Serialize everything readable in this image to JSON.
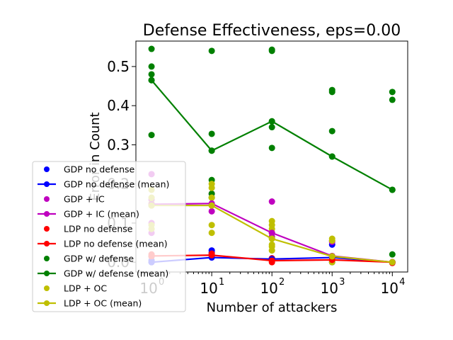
{
  "chart_data": {
    "type": "scatter",
    "title": "Defense Effectiveness, eps=0.00",
    "xlabel": "Number of attackers",
    "ylabel": "Error in Count",
    "xscale": "log",
    "xlim": [
      0.55,
      18000
    ],
    "ylim": [
      -0.025,
      0.565
    ],
    "xticks": [
      {
        "value": 1,
        "label": "10",
        "exp": "0"
      },
      {
        "value": 10,
        "label": "10",
        "exp": "1"
      },
      {
        "value": 100,
        "label": "10",
        "exp": "2"
      },
      {
        "value": 1000,
        "label": "10",
        "exp": "3"
      },
      {
        "value": 10000,
        "label": "10",
        "exp": "4"
      }
    ],
    "yticks": [
      0.0,
      0.1,
      0.2,
      0.3,
      0.4,
      0.5
    ],
    "ytick_labels": [
      "0.0",
      "0.1",
      "0.2",
      "0.3",
      "0.4",
      "0.5"
    ],
    "x": [
      1,
      10,
      100,
      1000,
      10000
    ],
    "series": [
      {
        "name": "GDP no defense",
        "color": "#0000ff",
        "points": [
          [
            1,
            0.0
          ],
          [
            1,
            0.005
          ],
          [
            10,
            0.018
          ],
          [
            10,
            0.025
          ],
          [
            10,
            0.03
          ],
          [
            100,
            0.005
          ],
          [
            100,
            0.01
          ],
          [
            1000,
            0.045
          ],
          [
            1000,
            0.0
          ],
          [
            10000,
            0.0
          ]
        ],
        "mean": [
          0.0,
          0.012,
          0.008,
          0.012,
          0.0
        ]
      },
      {
        "name": "GDP + IC",
        "color": "#bf00bf",
        "points": [
          [
            1,
            0.225
          ],
          [
            1,
            0.16
          ],
          [
            1,
            0.1
          ],
          [
            1,
            0.075
          ],
          [
            1,
            0.015
          ],
          [
            10,
            0.175
          ],
          [
            10,
            0.13
          ],
          [
            100,
            0.155
          ],
          [
            100,
            0.075
          ],
          [
            100,
            0.065
          ],
          [
            1000,
            0.055
          ],
          [
            1000,
            0.052
          ],
          [
            10000,
            0.0
          ]
        ],
        "mean": [
          0.148,
          0.15,
          0.075,
          0.016,
          0.0
        ]
      },
      {
        "name": "LDP no defense",
        "color": "#ff0000",
        "points": [
          [
            1,
            0.02
          ],
          [
            1,
            0.015
          ],
          [
            10,
            0.022
          ],
          [
            10,
            0.018
          ],
          [
            100,
            0.01
          ],
          [
            100,
            0.005
          ],
          [
            100,
            0.0
          ],
          [
            1000,
            0.005
          ],
          [
            10000,
            0.0
          ],
          [
            10000,
            -0.002
          ]
        ],
        "mean": [
          0.016,
          0.018,
          0.004,
          0.006,
          0.0
        ]
      },
      {
        "name": "GDP w/ defense",
        "color": "#008000",
        "points": [
          [
            1,
            0.545
          ],
          [
            1,
            0.5
          ],
          [
            1,
            0.48
          ],
          [
            1,
            0.465
          ],
          [
            1,
            0.325
          ],
          [
            10,
            0.54
          ],
          [
            10,
            0.328
          ],
          [
            10,
            0.285
          ],
          [
            10,
            0.21
          ],
          [
            10,
            0.175
          ],
          [
            10,
            0.165
          ],
          [
            100,
            0.543
          ],
          [
            100,
            0.54
          ],
          [
            100,
            0.36
          ],
          [
            100,
            0.345
          ],
          [
            100,
            0.292
          ],
          [
            1000,
            0.44
          ],
          [
            1000,
            0.435
          ],
          [
            1000,
            0.335
          ],
          [
            1000,
            0.27
          ],
          [
            10000,
            0.435
          ],
          [
            10000,
            0.415
          ],
          [
            10000,
            0.185
          ],
          [
            10000,
            0.02
          ]
        ],
        "mean": [
          0.465,
          0.285,
          0.36,
          0.27,
          0.185
        ]
      },
      {
        "name": "LDP + OC",
        "color": "#bfbf00",
        "points": [
          [
            1,
            0.185
          ],
          [
            1,
            0.165
          ],
          [
            1,
            0.15
          ],
          [
            1,
            0.145
          ],
          [
            1,
            0.095
          ],
          [
            1,
            0.085
          ],
          [
            10,
            0.2
          ],
          [
            10,
            0.19
          ],
          [
            10,
            0.165
          ],
          [
            10,
            0.145
          ],
          [
            10,
            0.095
          ],
          [
            10,
            0.075
          ],
          [
            100,
            0.105
          ],
          [
            100,
            0.095
          ],
          [
            100,
            0.085
          ],
          [
            100,
            0.075
          ],
          [
            100,
            0.06
          ],
          [
            100,
            0.045
          ],
          [
            100,
            0.04
          ],
          [
            100,
            0.03
          ],
          [
            1000,
            0.06
          ],
          [
            1000,
            0.055
          ],
          [
            1000,
            0.0
          ],
          [
            10000,
            0.0
          ]
        ],
        "mean": [
          0.145,
          0.145,
          0.06,
          0.015,
          0.0
        ]
      }
    ],
    "legend": {
      "placement": "lower-left",
      "entries": [
        {
          "label": "GDP no defense",
          "series": 0,
          "style": "marker"
        },
        {
          "label": "GDP no defense (mean)",
          "series": 0,
          "style": "line"
        },
        {
          "label": "GDP + IC",
          "series": 1,
          "style": "marker"
        },
        {
          "label": "GDP + IC (mean)",
          "series": 1,
          "style": "line"
        },
        {
          "label": "LDP no defense",
          "series": 2,
          "style": "marker"
        },
        {
          "label": "LDP no defense (mean)",
          "series": 2,
          "style": "line"
        },
        {
          "label": "GDP w/ defense",
          "series": 3,
          "style": "marker"
        },
        {
          "label": "GDP w/ defense (mean)",
          "series": 3,
          "style": "line"
        },
        {
          "label": "LDP + OC",
          "series": 4,
          "style": "marker"
        },
        {
          "label": "LDP + OC (mean)",
          "series": 4,
          "style": "line"
        }
      ]
    },
    "grid": false
  }
}
